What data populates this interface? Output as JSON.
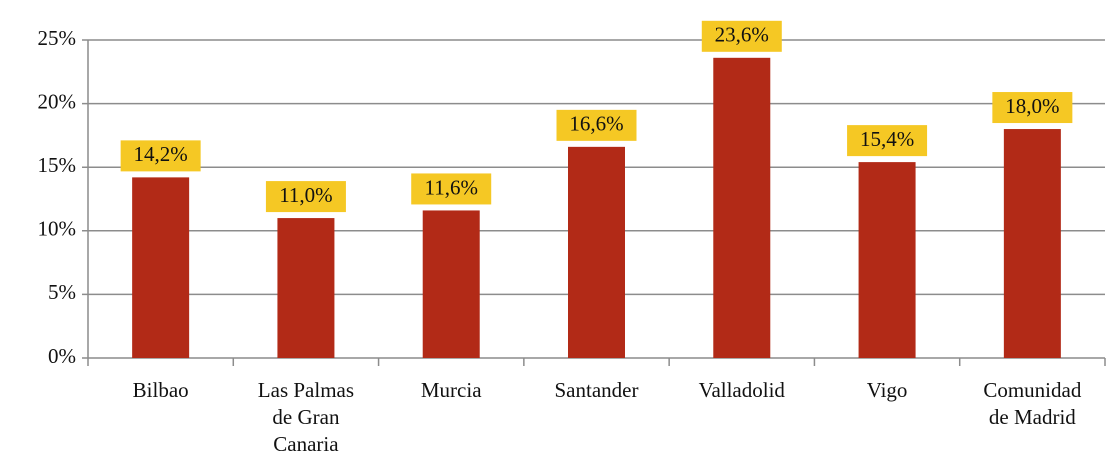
{
  "chart_data": {
    "type": "bar",
    "categories": [
      "Bilbao",
      "Las Palmas de Gran Canaria",
      "Murcia",
      "Santander",
      "Valladolid",
      "Vigo",
      "Comunidad de Madrid"
    ],
    "values": [
      14.2,
      11.0,
      11.6,
      16.6,
      23.6,
      15.4,
      18.0
    ],
    "value_labels": [
      "14,2%",
      "11,0%",
      "11,6%",
      "16,6%",
      "23,6%",
      "15,4%",
      "18,0%"
    ],
    "color": "#b22a17",
    "label_color": "#f5c824",
    "ylim": [
      0,
      25
    ],
    "yticks": [
      {
        "value": 0,
        "label": "0%"
      },
      {
        "value": 5,
        "label": "5%"
      },
      {
        "value": 10,
        "label": "10%"
      },
      {
        "value": 15,
        "label": "15%"
      },
      {
        "value": 20,
        "label": "20%"
      },
      {
        "value": 25,
        "label": "25%"
      }
    ],
    "grid": true
  }
}
